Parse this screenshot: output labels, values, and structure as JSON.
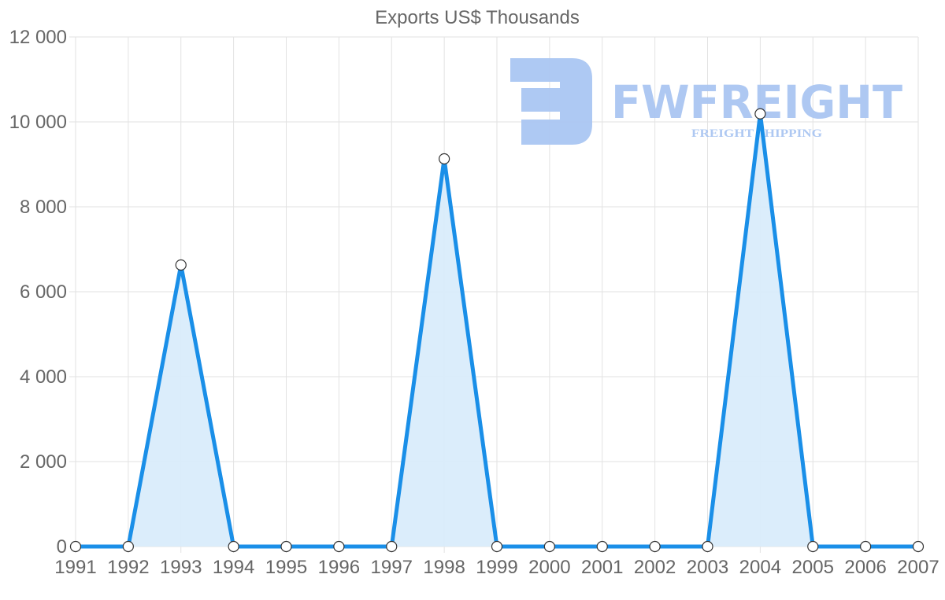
{
  "chart_data": {
    "type": "line",
    "title": "Exports US$ Thousands",
    "xlabel": "",
    "ylabel": "",
    "categories": [
      "1991",
      "1992",
      "1993",
      "1994",
      "1995",
      "1996",
      "1997",
      "1998",
      "1999",
      "2000",
      "2001",
      "2002",
      "2003",
      "2004",
      "2005",
      "2006",
      "2007"
    ],
    "series": [
      {
        "name": "Exports US$ Thousands",
        "values": [
          0,
          0,
          6630,
          0,
          0,
          0,
          0,
          9130,
          0,
          0,
          0,
          0,
          0,
          10190,
          0,
          0,
          0
        ],
        "color": "#1a8fe8",
        "fill": "#d9ecfb",
        "filled": true
      }
    ],
    "ylim": [
      0,
      12000
    ],
    "yticks": [
      0,
      2000,
      4000,
      6000,
      8000,
      10000,
      12000
    ],
    "ytick_labels": [
      "0",
      "2 000",
      "4 000",
      "6 000",
      "8 000",
      "10 000",
      "12 000"
    ],
    "grid": true,
    "legend": "none"
  },
  "watermark": {
    "brand": "FWFREIGHT",
    "tagline": "FREIGHT SHIPPING",
    "color": "#aac6f2"
  }
}
